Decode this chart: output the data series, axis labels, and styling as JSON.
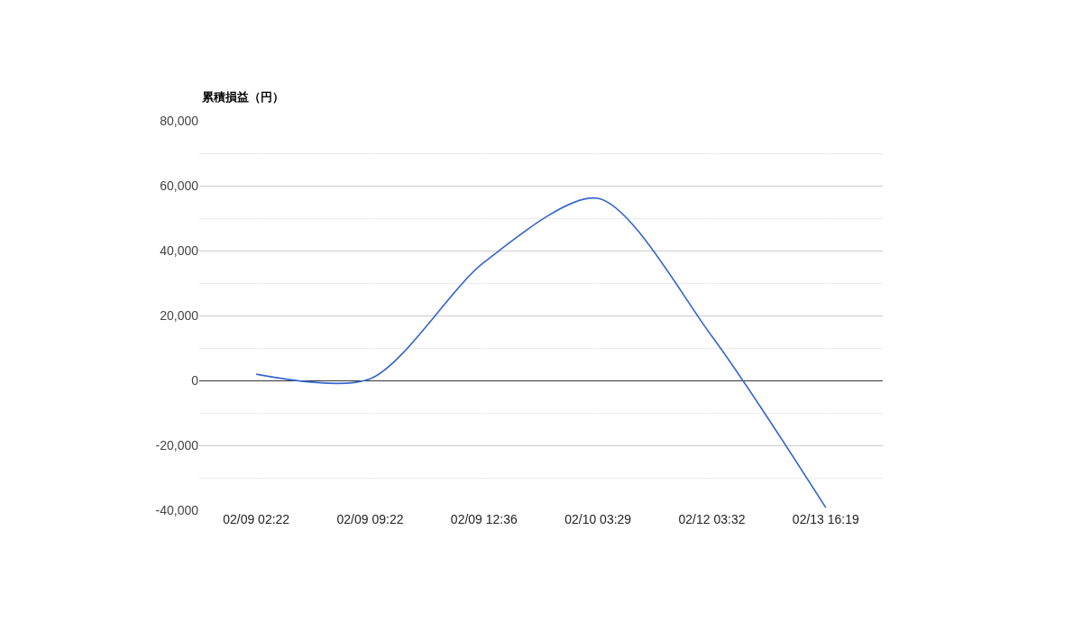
{
  "chart_data": {
    "type": "line",
    "ylabel": "累積損益（円）",
    "categories": [
      "02/09 02:22",
      "02/09 09:22",
      "02/09 12:36",
      "02/10 03:29",
      "02/12 03:32",
      "02/13 16:19"
    ],
    "series": [
      {
        "color": "#3366cc",
        "values": [
          1900,
          500,
          36400,
          56100,
          13600,
          -39200
        ]
      }
    ],
    "ylim": [
      -40000,
      80000
    ],
    "yticks": [
      {
        "value": -40000,
        "label": "-40,000"
      },
      {
        "value": -30000,
        "label": null
      },
      {
        "value": -20000,
        "label": "-20,000"
      },
      {
        "value": -10000,
        "label": null
      },
      0,
      {
        "value": 10000,
        "label": null
      },
      {
        "value": 20000,
        "label": "20,000"
      },
      {
        "value": 30000,
        "label": null
      },
      {
        "value": 40000,
        "label": "40,000"
      },
      {
        "value": 50000,
        "label": null
      },
      {
        "value": 60000,
        "label": "60,000"
      },
      {
        "value": 70000,
        "label": null
      },
      {
        "value": 80000,
        "label": "80,000"
      }
    ],
    "grid": true,
    "legend": false,
    "marker": "none",
    "line_style": "solid"
  }
}
